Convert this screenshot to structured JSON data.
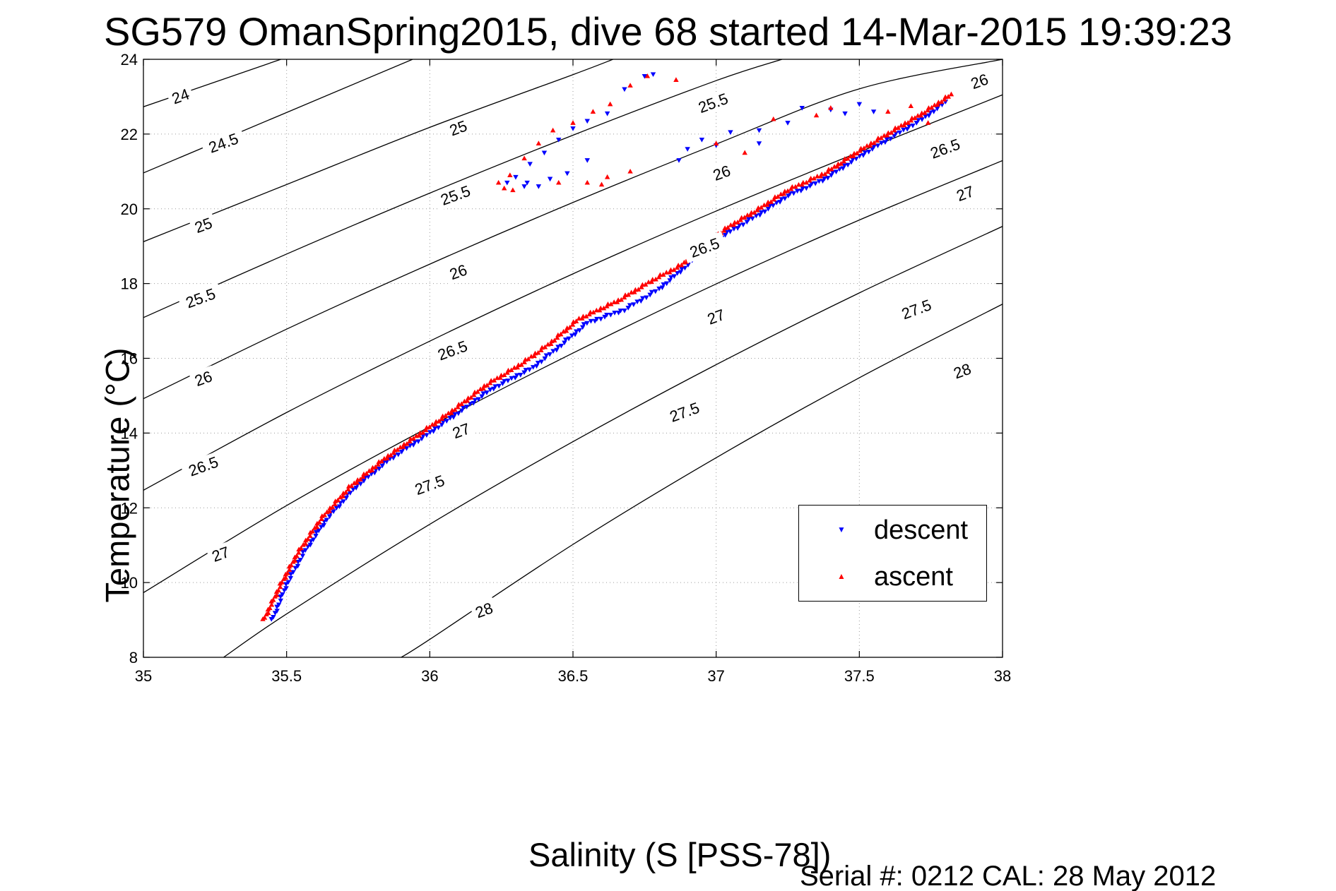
{
  "figure": {
    "title": "SG579 OmanSpring2015, dive 68 started 14-Mar-2015 19:39:23",
    "serial_text": "Serial #: 0212  CAL: 28 May 2012"
  },
  "chart_data": {
    "type": "scatter",
    "title": "SG579 OmanSpring2015, dive 68 started 14-Mar-2015 19:39:23",
    "xlabel": "Salinity (S [PSS-78])",
    "ylabel": "Temperature (°C)",
    "xlim": [
      35,
      38
    ],
    "ylim": [
      8,
      24
    ],
    "xticks": [
      35,
      35.5,
      36,
      36.5,
      37,
      37.5,
      38
    ],
    "xtick_labels": [
      "35",
      "35.5",
      "36",
      "36.5",
      "37",
      "37.5",
      "38"
    ],
    "yticks": [
      8,
      10,
      12,
      14,
      16,
      18,
      20,
      22,
      24
    ],
    "ytick_labels": [
      "8",
      "10",
      "12",
      "14",
      "16",
      "18",
      "20",
      "22",
      "24"
    ],
    "grid": true,
    "legend_position": "inside, right of center",
    "colors": {
      "descent": "#0000ff",
      "ascent": "#ff0000",
      "contour": "#000000"
    },
    "density_contours": [
      {
        "level": "24",
        "points": [
          [
            35.0,
            22.73
          ],
          [
            35.48,
            24.0
          ]
        ],
        "labels": [
          {
            "s": 35.13,
            "t": 23.0
          }
        ]
      },
      {
        "level": "24.5",
        "points": [
          [
            35.0,
            20.96
          ],
          [
            35.94,
            24.0
          ]
        ],
        "labels": [
          {
            "s": 35.28,
            "t": 21.75
          }
        ]
      },
      {
        "level": "25",
        "points": [
          [
            35.0,
            19.12
          ],
          [
            35.5,
            20.65
          ],
          [
            36.0,
            22.18
          ],
          [
            36.5,
            23.59
          ],
          [
            36.64,
            24.0
          ]
        ],
        "labels": [
          {
            "s": 35.21,
            "t": 19.55
          },
          {
            "s": 36.1,
            "t": 22.15
          }
        ]
      },
      {
        "level": "25.5",
        "points": [
          [
            35.0,
            17.09
          ],
          [
            35.5,
            18.79
          ],
          [
            36.0,
            20.42
          ],
          [
            36.5,
            21.97
          ],
          [
            37.0,
            23.43
          ],
          [
            37.23,
            24.0
          ]
        ],
        "labels": [
          {
            "s": 35.2,
            "t": 17.6
          },
          {
            "s": 36.09,
            "t": 20.35
          },
          {
            "s": 36.99,
            "t": 22.82
          }
        ]
      },
      {
        "level": "26",
        "points": [
          [
            35.0,
            14.92
          ],
          [
            35.5,
            16.78
          ],
          [
            36.0,
            18.52
          ],
          [
            36.5,
            20.17
          ],
          [
            37.0,
            21.73
          ],
          [
            37.5,
            23.21
          ],
          [
            38.0,
            24.0
          ]
        ],
        "labels": [
          {
            "s": 35.21,
            "t": 15.45
          },
          {
            "s": 36.1,
            "t": 18.3
          },
          {
            "s": 37.02,
            "t": 20.95
          },
          {
            "s": 37.92,
            "t": 23.4
          }
        ]
      },
      {
        "level": "26.5",
        "points": [
          [
            35.0,
            12.47
          ],
          [
            35.5,
            14.55
          ],
          [
            36.0,
            16.46
          ],
          [
            36.5,
            18.26
          ],
          [
            37.0,
            19.94
          ],
          [
            37.5,
            21.52
          ],
          [
            38.0,
            23.05
          ]
        ],
        "labels": [
          {
            "s": 35.21,
            "t": 13.1
          },
          {
            "s": 36.08,
            "t": 16.2
          },
          {
            "s": 36.96,
            "t": 18.95
          },
          {
            "s": 37.8,
            "t": 21.6
          }
        ]
      },
      {
        "level": "27",
        "points": [
          [
            35.0,
            9.73
          ],
          [
            35.5,
            12.06
          ],
          [
            36.0,
            14.17
          ],
          [
            36.5,
            16.14
          ],
          [
            37.0,
            17.99
          ],
          [
            37.5,
            19.7
          ],
          [
            38.0,
            21.29
          ]
        ],
        "labels": [
          {
            "s": 35.27,
            "t": 10.75
          },
          {
            "s": 36.11,
            "t": 14.05
          },
          {
            "s": 37.0,
            "t": 17.1
          },
          {
            "s": 37.87,
            "t": 20.4
          }
        ]
      },
      {
        "level": "27.5",
        "points": [
          [
            35.28,
            8.0
          ],
          [
            35.5,
            9.16
          ],
          [
            36.0,
            11.56
          ],
          [
            36.5,
            13.77
          ],
          [
            37.0,
            15.83
          ],
          [
            37.5,
            17.75
          ],
          [
            38.0,
            19.53
          ]
        ],
        "labels": [
          {
            "s": 36.0,
            "t": 12.6
          },
          {
            "s": 36.89,
            "t": 14.55
          },
          {
            "s": 37.7,
            "t": 17.3
          }
        ]
      },
      {
        "level": "28",
        "points": [
          [
            35.9,
            8.0
          ],
          [
            36.0,
            8.48
          ],
          [
            36.5,
            11.02
          ],
          [
            37.0,
            13.34
          ],
          [
            37.5,
            15.48
          ],
          [
            38.0,
            17.45
          ]
        ],
        "labels": [
          {
            "s": 36.19,
            "t": 9.25
          },
          {
            "s": 37.86,
            "t": 15.65
          }
        ]
      }
    ],
    "series": [
      {
        "name": "descent",
        "marker": "triangle-down",
        "path_points": [
          [
            35.45,
            9.0
          ],
          [
            35.5,
            9.95
          ],
          [
            35.56,
            10.8
          ],
          [
            35.64,
            11.7
          ],
          [
            35.74,
            12.55
          ],
          [
            35.86,
            13.3
          ],
          [
            35.98,
            13.9
          ],
          [
            36.1,
            14.55
          ],
          [
            36.22,
            15.2
          ],
          [
            36.36,
            15.75
          ],
          [
            36.45,
            16.3
          ],
          [
            36.55,
            16.95
          ],
          [
            36.68,
            17.3
          ],
          [
            36.8,
            17.85
          ],
          [
            36.9,
            18.5
          ],
          [
            36.96,
            18.95
          ],
          [
            37.05,
            19.4
          ],
          [
            37.15,
            19.85
          ],
          [
            37.25,
            20.35
          ],
          [
            37.38,
            20.8
          ],
          [
            37.5,
            21.4
          ],
          [
            37.62,
            21.95
          ],
          [
            37.72,
            22.4
          ],
          [
            37.8,
            22.85
          ]
        ],
        "extra_points": [
          [
            36.34,
            20.7
          ],
          [
            36.42,
            20.8
          ],
          [
            36.48,
            20.95
          ],
          [
            36.55,
            21.3
          ],
          [
            36.27,
            20.7
          ],
          [
            36.3,
            20.85
          ],
          [
            36.35,
            21.2
          ],
          [
            36.4,
            21.5
          ],
          [
            36.45,
            21.85
          ],
          [
            36.5,
            22.15
          ],
          [
            36.55,
            22.35
          ],
          [
            36.62,
            22.55
          ],
          [
            36.68,
            23.2
          ],
          [
            36.75,
            23.55
          ],
          [
            36.78,
            23.6
          ],
          [
            36.87,
            21.3
          ],
          [
            37.0,
            21.7
          ],
          [
            37.05,
            22.05
          ],
          [
            37.15,
            21.75
          ],
          [
            37.3,
            22.7
          ],
          [
            37.4,
            22.65
          ],
          [
            37.45,
            22.55
          ],
          [
            37.5,
            22.8
          ],
          [
            37.55,
            22.6
          ],
          [
            37.15,
            22.1
          ],
          [
            37.25,
            22.3
          ],
          [
            36.33,
            20.6
          ],
          [
            36.38,
            20.6
          ],
          [
            36.9,
            21.6
          ],
          [
            36.95,
            21.85
          ]
        ]
      },
      {
        "name": "ascent",
        "marker": "triangle-up",
        "path_points": [
          [
            35.42,
            9.0
          ],
          [
            35.48,
            9.95
          ],
          [
            35.54,
            10.8
          ],
          [
            35.62,
            11.7
          ],
          [
            35.72,
            12.55
          ],
          [
            35.84,
            13.3
          ],
          [
            35.96,
            13.95
          ],
          [
            36.08,
            14.6
          ],
          [
            36.2,
            15.3
          ],
          [
            36.32,
            15.85
          ],
          [
            36.42,
            16.4
          ],
          [
            36.52,
            17.05
          ],
          [
            36.66,
            17.55
          ],
          [
            36.78,
            18.1
          ],
          [
            36.88,
            18.5
          ],
          [
            36.96,
            19.05
          ],
          [
            37.05,
            19.55
          ],
          [
            37.15,
            20.0
          ],
          [
            37.25,
            20.5
          ],
          [
            37.38,
            20.95
          ],
          [
            37.5,
            21.55
          ],
          [
            37.62,
            22.1
          ],
          [
            37.72,
            22.55
          ],
          [
            37.82,
            23.05
          ]
        ],
        "extra_points": [
          [
            36.24,
            20.7
          ],
          [
            36.28,
            20.9
          ],
          [
            36.33,
            21.35
          ],
          [
            36.38,
            21.75
          ],
          [
            36.43,
            22.1
          ],
          [
            36.5,
            22.3
          ],
          [
            36.57,
            22.6
          ],
          [
            36.63,
            22.8
          ],
          [
            36.7,
            23.3
          ],
          [
            36.76,
            23.55
          ],
          [
            36.86,
            23.45
          ],
          [
            36.55,
            20.7
          ],
          [
            36.62,
            20.85
          ],
          [
            36.7,
            21.0
          ],
          [
            37.0,
            21.75
          ],
          [
            37.1,
            21.5
          ],
          [
            37.2,
            22.4
          ],
          [
            37.35,
            22.5
          ],
          [
            37.4,
            22.7
          ],
          [
            37.6,
            22.6
          ],
          [
            37.68,
            22.75
          ],
          [
            37.74,
            22.3
          ],
          [
            36.26,
            20.55
          ],
          [
            36.29,
            20.5
          ],
          [
            36.45,
            20.7
          ],
          [
            36.6,
            20.65
          ]
        ]
      }
    ],
    "legend": [
      {
        "label": "descent",
        "marker": "▼",
        "color": "#0000ff"
      },
      {
        "label": "ascent",
        "marker": "▲",
        "color": "#ff0000"
      }
    ]
  }
}
